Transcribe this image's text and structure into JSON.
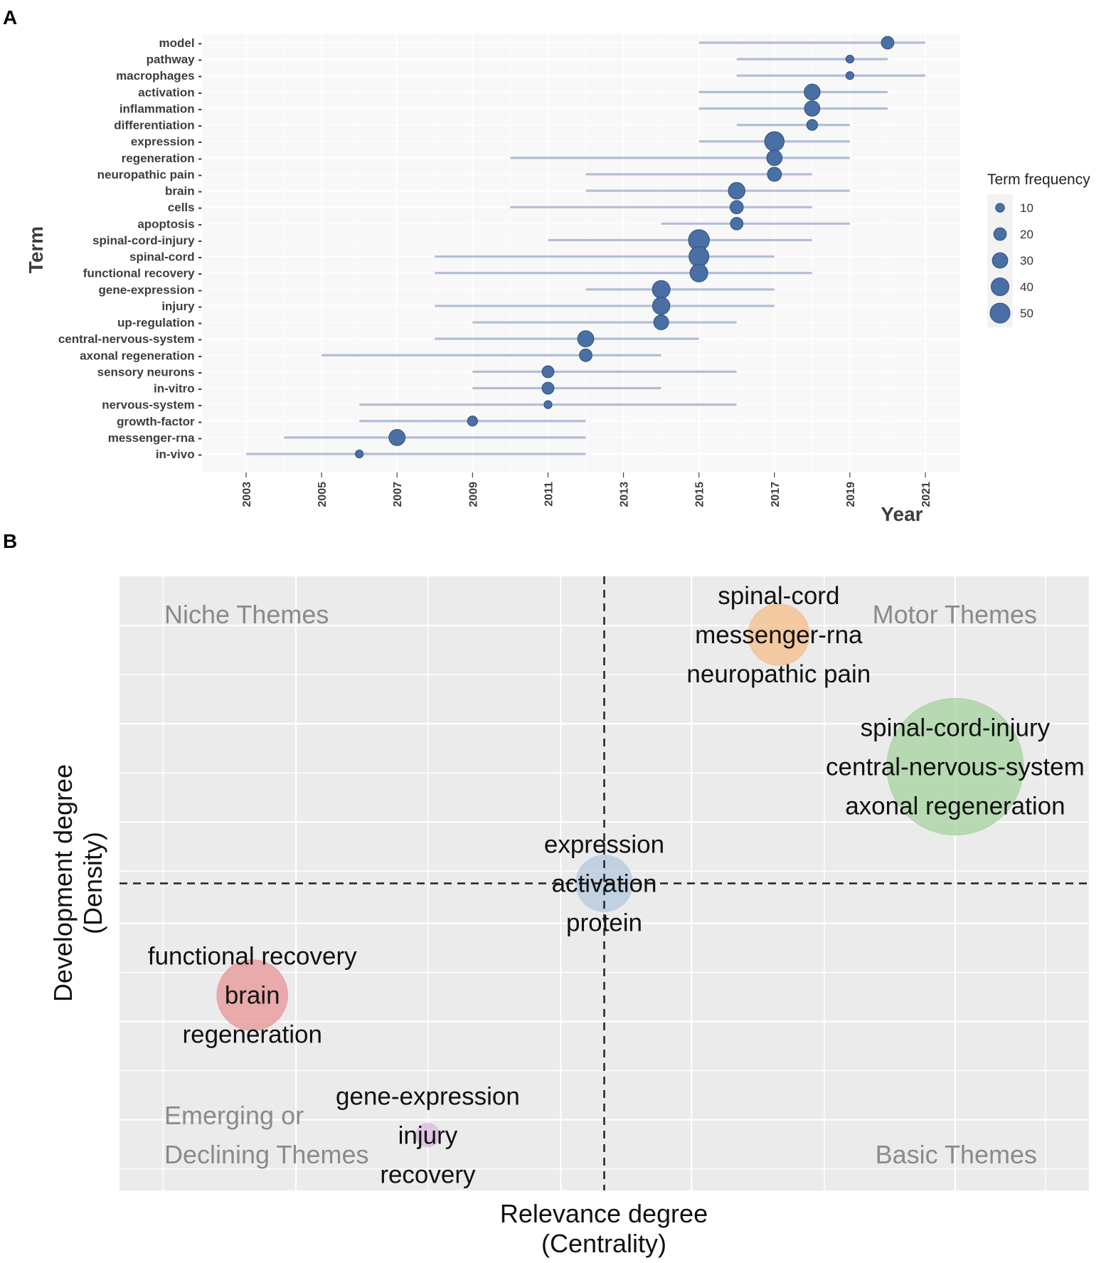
{
  "panels": {
    "a": {
      "letter": "A"
    },
    "b": {
      "letter": "B"
    }
  },
  "colors": {
    "bubble_fill": "#4a6fa5",
    "bubble_stroke": "#2e4f80",
    "range_line": "#b3bdd6",
    "panel_a_bg": "#f8f8f8",
    "panel_b_bg": "#ebebeb",
    "grid": "#ffffff"
  },
  "chart_data": [
    {
      "type": "scatter",
      "subtype": "trend-topics",
      "xlabel": "Year",
      "ylabel": "Term",
      "xlim": [
        2003,
        2021
      ],
      "x_ticks": [
        "2003",
        "2005",
        "2007",
        "2009",
        "2011",
        "2013",
        "2015",
        "2017",
        "2019",
        "2021"
      ],
      "size_legend": {
        "title": "Term frequency",
        "values": [
          10,
          20,
          30,
          40,
          50
        ],
        "labels": [
          "10",
          "20",
          "30",
          "40",
          "50"
        ]
      },
      "terms": [
        {
          "term": "model",
          "q1": 2015,
          "median": 2020,
          "q3": 2021,
          "freq": 20
        },
        {
          "term": "pathway",
          "q1": 2016,
          "median": 2019,
          "q3": 2020,
          "freq": 8
        },
        {
          "term": "macrophages",
          "q1": 2016,
          "median": 2019,
          "q3": 2021,
          "freq": 8
        },
        {
          "term": "activation",
          "q1": 2015,
          "median": 2018,
          "q3": 2020,
          "freq": 32
        },
        {
          "term": "inflammation",
          "q1": 2015,
          "median": 2018,
          "q3": 2020,
          "freq": 30
        },
        {
          "term": "differentiation",
          "q1": 2016,
          "median": 2018,
          "q3": 2019,
          "freq": 15
        },
        {
          "term": "expression",
          "q1": 2015,
          "median": 2017,
          "q3": 2019,
          "freq": 48
        },
        {
          "term": "regeneration",
          "q1": 2010,
          "median": 2017,
          "q3": 2019,
          "freq": 30
        },
        {
          "term": "neuropathic pain",
          "q1": 2012,
          "median": 2017,
          "q3": 2018,
          "freq": 25
        },
        {
          "term": "brain",
          "q1": 2012,
          "median": 2016,
          "q3": 2019,
          "freq": 35
        },
        {
          "term": "cells",
          "q1": 2010,
          "median": 2016,
          "q3": 2018,
          "freq": 22
        },
        {
          "term": "apoptosis",
          "q1": 2014,
          "median": 2016,
          "q3": 2019,
          "freq": 20
        },
        {
          "term": "spinal-cord-injury",
          "q1": 2011,
          "median": 2015,
          "q3": 2018,
          "freq": 55
        },
        {
          "term": "spinal-cord",
          "q1": 2008,
          "median": 2015,
          "q3": 2017,
          "freq": 50
        },
        {
          "term": "functional recovery",
          "q1": 2008,
          "median": 2015,
          "q3": 2018,
          "freq": 40
        },
        {
          "term": "gene-expression",
          "q1": 2012,
          "median": 2014,
          "q3": 2017,
          "freq": 40
        },
        {
          "term": "injury",
          "q1": 2008,
          "median": 2014,
          "q3": 2017,
          "freq": 38
        },
        {
          "term": "up-regulation",
          "q1": 2009,
          "median": 2014,
          "q3": 2016,
          "freq": 28
        },
        {
          "term": "central-nervous-system",
          "q1": 2008,
          "median": 2012,
          "q3": 2015,
          "freq": 33
        },
        {
          "term": "axonal regeneration",
          "q1": 2005,
          "median": 2012,
          "q3": 2014,
          "freq": 20
        },
        {
          "term": "sensory neurons",
          "q1": 2009,
          "median": 2011,
          "q3": 2016,
          "freq": 18
        },
        {
          "term": "in-vitro",
          "q1": 2009,
          "median": 2011,
          "q3": 2014,
          "freq": 18
        },
        {
          "term": "nervous-system",
          "q1": 2006,
          "median": 2011,
          "q3": 2016,
          "freq": 8
        },
        {
          "term": "growth-factor",
          "q1": 2006,
          "median": 2009,
          "q3": 2012,
          "freq": 13
        },
        {
          "term": "messenger-rna",
          "q1": 2004,
          "median": 2007,
          "q3": 2012,
          "freq": 33
        },
        {
          "term": "in-vivo",
          "q1": 2003,
          "median": 2006,
          "q3": 2012,
          "freq": 8
        }
      ]
    },
    {
      "type": "scatter",
      "subtype": "thematic-map",
      "xlabel_lines": [
        "Relevance degree",
        "(Centrality)"
      ],
      "ylabel_lines": [
        "Development degree",
        "(Density)"
      ],
      "xlim": [
        0,
        1
      ],
      "ylim": [
        0,
        1
      ],
      "divider_x": 0.5,
      "divider_y": 0.5,
      "quadrants": {
        "top_left": [
          "Niche Themes"
        ],
        "top_right": [
          "Motor Themes"
        ],
        "bottom_left": [
          "Emerging or",
          "Declining Themes"
        ],
        "bottom_right": [
          "Basic Themes"
        ]
      },
      "clusters": [
        {
          "centrality": 0.68,
          "density": 0.905,
          "size": 0.26,
          "color": "#f4c08f",
          "terms": [
            "spinal-cord",
            "messenger-rna",
            "neuropathic pain"
          ]
        },
        {
          "centrality": 0.862,
          "density": 0.69,
          "size": 0.58,
          "color": "#a9d4a2",
          "terms": [
            "spinal-cord-injury",
            "central-nervous-system",
            "axonal regeneration"
          ]
        },
        {
          "centrality": 0.5,
          "density": 0.5,
          "size": 0.24,
          "color": "#b6cbe0",
          "terms": [
            "expression",
            "activation",
            "protein"
          ]
        },
        {
          "centrality": 0.137,
          "density": 0.318,
          "size": 0.3,
          "color": "#e89a9c",
          "terms": [
            "functional recovery",
            "brain",
            "regeneration"
          ]
        },
        {
          "centrality": 0.318,
          "density": 0.09,
          "size": 0.1,
          "color": "#d9bbdf",
          "terms": [
            "gene-expression",
            "injury",
            "recovery"
          ]
        }
      ]
    }
  ]
}
